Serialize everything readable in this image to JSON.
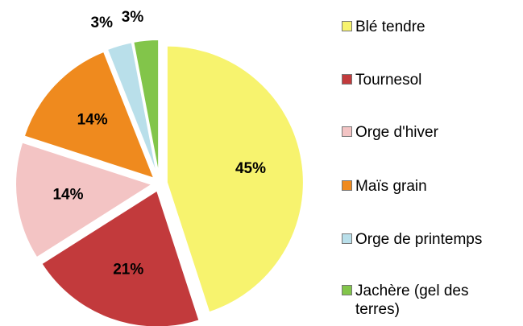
{
  "chart_data": {
    "type": "pie",
    "categories": [
      "Blé tendre",
      "Tournesol",
      "Orge d'hiver",
      "Maïs grain",
      "Orge de printemps",
      "Jachère (gel des terres)"
    ],
    "values": [
      45,
      21,
      14,
      14,
      3,
      3
    ],
    "value_labels": [
      "45%",
      "21%",
      "14%",
      "14%",
      "3%",
      "3%"
    ],
    "colors": [
      "#f7f36e",
      "#c23a3c",
      "#f3c4c4",
      "#ef8a1e",
      "#b9dfea",
      "#82c54a"
    ],
    "legend": "right"
  }
}
